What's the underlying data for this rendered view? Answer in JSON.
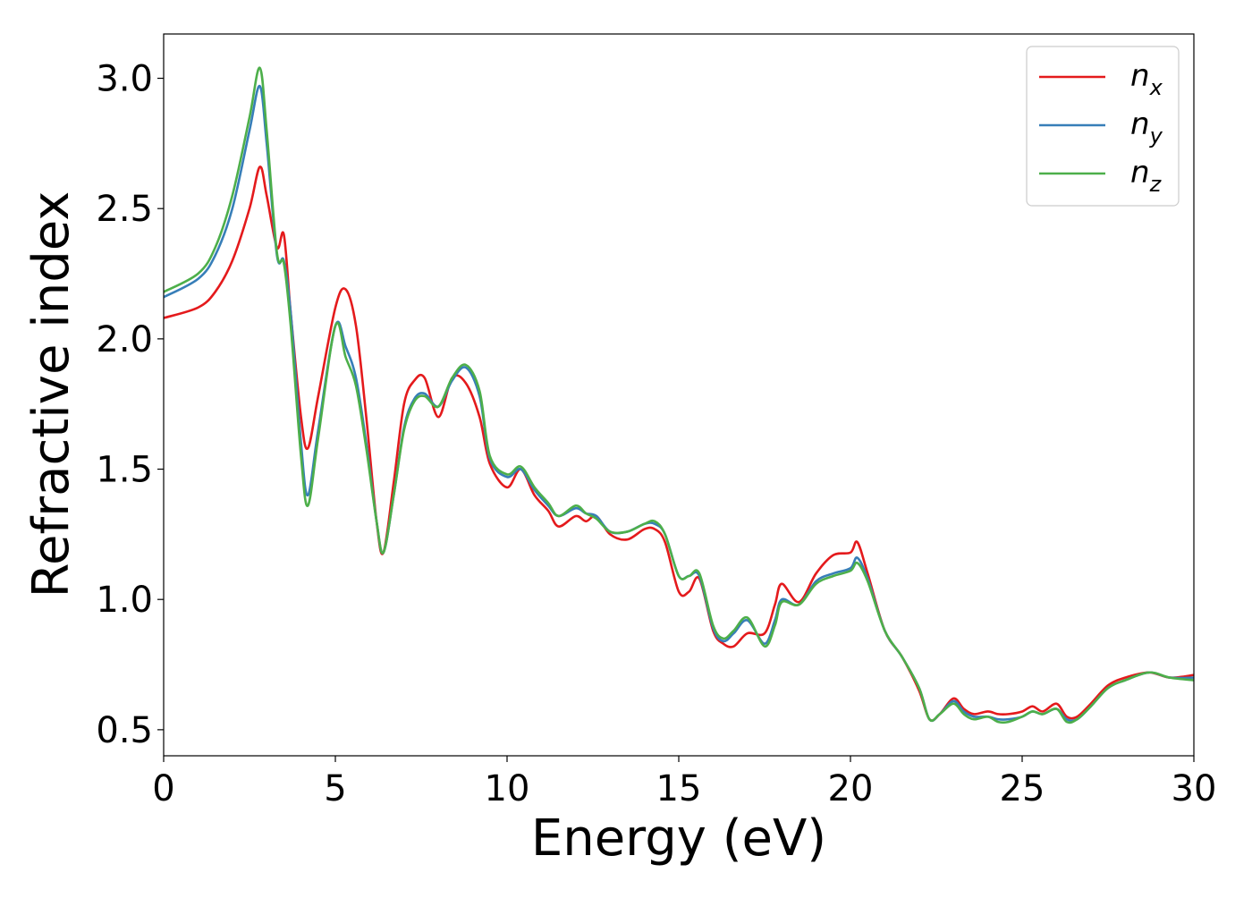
{
  "chart_data": {
    "type": "line",
    "title": "",
    "xlabel": "Energy (eV)",
    "ylabel": "Refractive index",
    "xlim": [
      0,
      30
    ],
    "ylim": [
      0.4,
      3.17
    ],
    "xticks": [
      0,
      5,
      10,
      15,
      20,
      25,
      30
    ],
    "xtick_labels": [
      "0",
      "5",
      "10",
      "15",
      "20",
      "25",
      "30"
    ],
    "yticks": [
      0.5,
      1.0,
      1.5,
      2.0,
      2.5,
      3.0
    ],
    "ytick_labels": [
      "0.5",
      "1.0",
      "1.5",
      "2.0",
      "2.5",
      "3.0"
    ],
    "grid": false,
    "legend_position": "top-right",
    "series": [
      {
        "name": "n",
        "subscript": "x",
        "color": "#e41a1c",
        "x": [
          0,
          1,
          1.5,
          2,
          2.5,
          2.8,
          3.0,
          3.3,
          3.5,
          3.7,
          4.0,
          4.2,
          4.5,
          5.0,
          5.3,
          5.6,
          5.9,
          6.2,
          6.4,
          6.7,
          7.0,
          7.3,
          7.6,
          8.0,
          8.4,
          8.8,
          9.2,
          9.5,
          10.0,
          10.4,
          10.8,
          11.2,
          11.5,
          12.0,
          12.3,
          12.6,
          13.0,
          13.5,
          14.0,
          14.3,
          14.6,
          15.0,
          15.3,
          15.6,
          16.0,
          16.3,
          16.6,
          17.0,
          17.5,
          17.8,
          18.0,
          18.5,
          19.0,
          19.5,
          20.0,
          20.2,
          20.5,
          21.0,
          21.5,
          22.0,
          22.3,
          22.6,
          23.0,
          23.3,
          23.6,
          24.0,
          24.3,
          24.6,
          25.0,
          25.3,
          25.6,
          26.0,
          26.3,
          26.6,
          27.0,
          27.5,
          28.0,
          28.7,
          29.3,
          30.0
        ],
        "y": [
          2.08,
          2.12,
          2.18,
          2.3,
          2.5,
          2.66,
          2.55,
          2.35,
          2.4,
          2.1,
          1.7,
          1.58,
          1.78,
          2.12,
          2.19,
          2.05,
          1.7,
          1.3,
          1.18,
          1.45,
          1.75,
          1.84,
          1.85,
          1.7,
          1.85,
          1.83,
          1.7,
          1.52,
          1.43,
          1.5,
          1.4,
          1.34,
          1.28,
          1.32,
          1.3,
          1.32,
          1.25,
          1.23,
          1.27,
          1.27,
          1.22,
          1.03,
          1.03,
          1.08,
          0.88,
          0.83,
          0.82,
          0.87,
          0.87,
          0.98,
          1.06,
          0.99,
          1.1,
          1.17,
          1.18,
          1.22,
          1.1,
          0.88,
          0.78,
          0.65,
          0.54,
          0.56,
          0.62,
          0.58,
          0.56,
          0.57,
          0.56,
          0.56,
          0.57,
          0.59,
          0.57,
          0.6,
          0.55,
          0.55,
          0.6,
          0.67,
          0.7,
          0.72,
          0.7,
          0.71
        ]
      },
      {
        "name": "n",
        "subscript": "y",
        "color": "#377eb8",
        "x": [
          0,
          1,
          1.5,
          2,
          2.5,
          2.8,
          3.0,
          3.3,
          3.5,
          3.7,
          4.0,
          4.2,
          4.5,
          5.0,
          5.3,
          5.6,
          5.9,
          6.2,
          6.4,
          6.7,
          7.0,
          7.3,
          7.6,
          8.0,
          8.4,
          8.8,
          9.2,
          9.5,
          10.0,
          10.4,
          10.8,
          11.2,
          11.5,
          12.0,
          12.3,
          12.6,
          13.0,
          13.5,
          14.0,
          14.3,
          14.6,
          15.0,
          15.3,
          15.6,
          16.0,
          16.3,
          16.6,
          17.0,
          17.5,
          17.8,
          18.0,
          18.5,
          19.0,
          19.5,
          20.0,
          20.2,
          20.5,
          21.0,
          21.5,
          22.0,
          22.3,
          22.6,
          23.0,
          23.3,
          23.6,
          24.0,
          24.3,
          24.6,
          25.0,
          25.3,
          25.6,
          26.0,
          26.3,
          26.6,
          27.0,
          27.5,
          28.0,
          28.7,
          29.3,
          30.0
        ],
        "y": [
          2.16,
          2.23,
          2.32,
          2.5,
          2.8,
          2.97,
          2.75,
          2.32,
          2.3,
          2.1,
          1.6,
          1.4,
          1.65,
          2.05,
          1.97,
          1.85,
          1.6,
          1.3,
          1.18,
          1.4,
          1.66,
          1.77,
          1.79,
          1.74,
          1.84,
          1.89,
          1.78,
          1.54,
          1.47,
          1.5,
          1.42,
          1.36,
          1.32,
          1.35,
          1.33,
          1.32,
          1.26,
          1.26,
          1.29,
          1.29,
          1.25,
          1.09,
          1.09,
          1.09,
          0.89,
          0.84,
          0.87,
          0.92,
          0.83,
          0.92,
          1.0,
          0.98,
          1.07,
          1.1,
          1.12,
          1.16,
          1.08,
          0.88,
          0.78,
          0.66,
          0.54,
          0.56,
          0.61,
          0.57,
          0.55,
          0.55,
          0.54,
          0.54,
          0.55,
          0.57,
          0.56,
          0.58,
          0.54,
          0.54,
          0.59,
          0.66,
          0.69,
          0.72,
          0.7,
          0.7
        ]
      },
      {
        "name": "n",
        "subscript": "z",
        "color": "#4daf4a",
        "x": [
          0,
          1,
          1.5,
          2,
          2.5,
          2.8,
          3.0,
          3.3,
          3.5,
          3.7,
          4.0,
          4.2,
          4.5,
          5.0,
          5.3,
          5.6,
          5.9,
          6.2,
          6.4,
          6.7,
          7.0,
          7.3,
          7.6,
          8.0,
          8.4,
          8.8,
          9.2,
          9.5,
          10.0,
          10.4,
          10.8,
          11.2,
          11.5,
          12.0,
          12.3,
          12.6,
          13.0,
          13.5,
          14.0,
          14.3,
          14.6,
          15.0,
          15.3,
          15.6,
          16.0,
          16.3,
          16.6,
          17.0,
          17.5,
          17.8,
          18.0,
          18.5,
          19.0,
          19.5,
          20.0,
          20.2,
          20.5,
          21.0,
          21.5,
          22.0,
          22.3,
          22.6,
          23.0,
          23.3,
          23.6,
          24.0,
          24.3,
          24.6,
          25.0,
          25.3,
          25.6,
          26.0,
          26.3,
          26.6,
          27.0,
          27.5,
          28.0,
          28.7,
          29.3,
          30.0
        ],
        "y": [
          2.18,
          2.25,
          2.35,
          2.55,
          2.85,
          3.04,
          2.8,
          2.33,
          2.29,
          2.05,
          1.55,
          1.36,
          1.62,
          2.05,
          1.93,
          1.82,
          1.58,
          1.3,
          1.18,
          1.4,
          1.65,
          1.76,
          1.78,
          1.74,
          1.85,
          1.9,
          1.8,
          1.55,
          1.48,
          1.51,
          1.43,
          1.37,
          1.32,
          1.36,
          1.33,
          1.31,
          1.26,
          1.26,
          1.29,
          1.3,
          1.25,
          1.09,
          1.09,
          1.1,
          0.9,
          0.85,
          0.88,
          0.93,
          0.82,
          0.9,
          0.99,
          0.98,
          1.06,
          1.09,
          1.11,
          1.14,
          1.07,
          0.88,
          0.78,
          0.66,
          0.54,
          0.56,
          0.6,
          0.56,
          0.54,
          0.55,
          0.53,
          0.53,
          0.55,
          0.57,
          0.56,
          0.58,
          0.53,
          0.54,
          0.59,
          0.66,
          0.69,
          0.72,
          0.7,
          0.69
        ]
      }
    ]
  }
}
